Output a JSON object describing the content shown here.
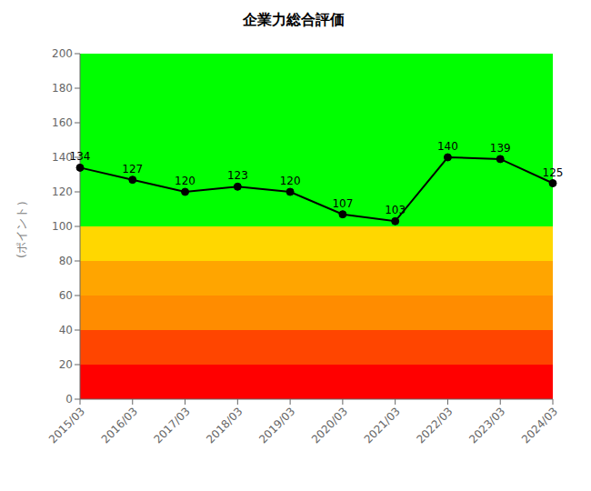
{
  "chart_data": {
    "type": "line",
    "title": "企業力総合評価",
    "y_label": "(ポイント）",
    "categories": [
      "2015/03",
      "2016/03",
      "2017/03",
      "2018/03",
      "2019/03",
      "2020/03",
      "2021/03",
      "2022/03",
      "2023/03",
      "2024/03"
    ],
    "values": [
      134,
      127,
      120,
      123,
      120,
      107,
      103,
      140,
      139,
      125
    ],
    "color": "#000000",
    "marker": "circle",
    "ylim": [
      0,
      200
    ],
    "yticks": [
      0,
      20,
      40,
      60,
      80,
      100,
      120,
      140,
      160,
      180,
      200
    ],
    "bands": [
      {
        "ymin": 0,
        "ymax": 20,
        "color": "#FF0000"
      },
      {
        "ymin": 20,
        "ymax": 40,
        "color": "#FF4500"
      },
      {
        "ymin": 40,
        "ymax": 60,
        "color": "#FF8C00"
      },
      {
        "ymin": 60,
        "ymax": 80,
        "color": "#FFA500"
      },
      {
        "ymin": 80,
        "ymax": 100,
        "color": "#FFD700"
      },
      {
        "ymin": 100,
        "ymax": 200,
        "color": "#00FF00"
      }
    ],
    "grid": false,
    "data_labels": true
  }
}
